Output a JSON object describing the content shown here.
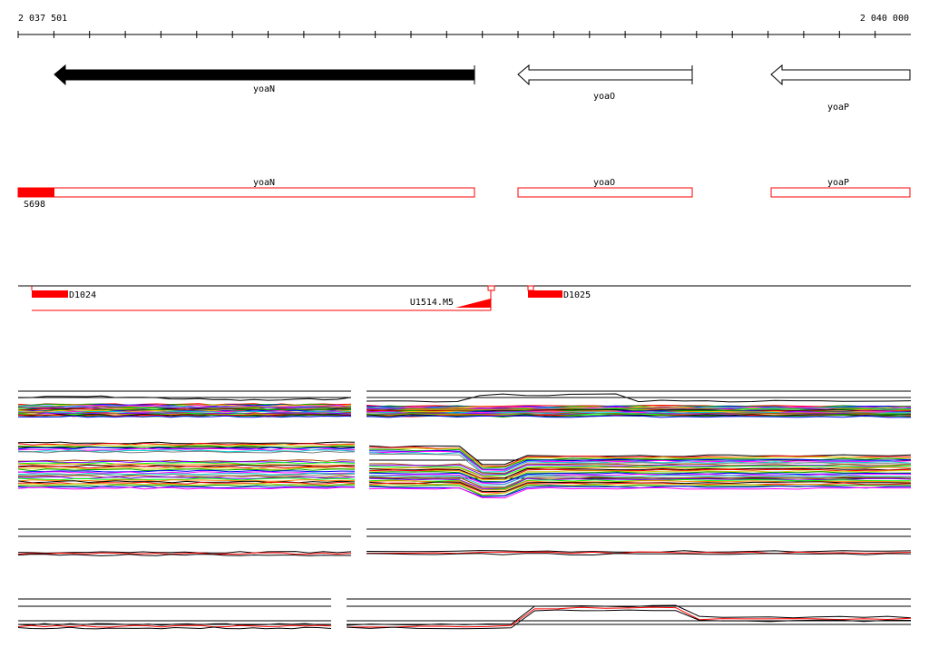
{
  "ruler": {
    "start_label": "2 037 501",
    "end_label": "2 040 000"
  },
  "genes": [
    {
      "name": "yoaN",
      "strand": "reverse",
      "style": "filled",
      "color": "#000000"
    },
    {
      "name": "yoaO",
      "strand": "reverse",
      "style": "outline",
      "color": "#000000"
    },
    {
      "name": "yoaP",
      "strand": "reverse",
      "style": "outline",
      "color": "#000000"
    }
  ],
  "annotation_track": {
    "color": "#ff0000",
    "items": [
      {
        "name": "yoaN",
        "feature": "S698"
      },
      {
        "name": "yoaO"
      },
      {
        "name": "yoaP"
      }
    ]
  },
  "features_track": {
    "color": "#ff0000",
    "items": [
      {
        "name": "D1024"
      },
      {
        "name": "U1514.M5"
      },
      {
        "name": "D1025"
      }
    ]
  },
  "expression_panels": [
    {
      "id": "panel-1",
      "series_palette": [
        "#000000",
        "#ff0000",
        "#00a000",
        "#0000ff",
        "#ffcc00",
        "#ff00ff",
        "#00cccc",
        "#808080",
        "#a05000",
        "#8000ff",
        "#00ff00",
        "#ff8000"
      ]
    },
    {
      "id": "panel-2",
      "series_palette": [
        "#000000",
        "#ff0000",
        "#cccc00",
        "#00a000",
        "#0000ff",
        "#ff00ff",
        "#00cccc",
        "#808080",
        "#a05000",
        "#8000ff",
        "#00ff00",
        "#ff8000"
      ]
    },
    {
      "id": "panel-3",
      "series_palette": [
        "#000000",
        "#ff0000"
      ]
    },
    {
      "id": "panel-4",
      "series_palette": [
        "#000000",
        "#ff0000"
      ]
    }
  ]
}
